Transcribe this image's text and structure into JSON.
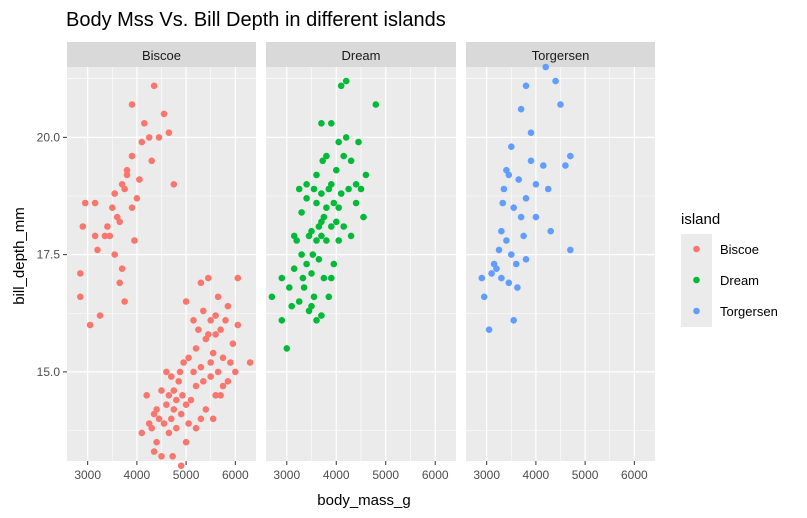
{
  "chart_data": {
    "type": "scatter",
    "title": "Body Mss Vs. Bill Depth in different islands",
    "xlabel": "body_mass_g",
    "ylabel": "bill_depth_mm",
    "xlim": [
      2580,
      6420
    ],
    "ylim": [
      13.1,
      21.5
    ],
    "x_ticks": [
      3000,
      4000,
      5000,
      6000
    ],
    "y_ticks": [
      15.0,
      17.5,
      20.0
    ],
    "x_tick_labels": [
      "3000",
      "4000",
      "5000",
      "6000"
    ],
    "y_tick_labels": [
      "15.0",
      "17.5",
      "20.0"
    ],
    "grid": true,
    "legend": {
      "title": "island",
      "position": "right",
      "items": [
        "Biscoe",
        "Dream",
        "Torgersen"
      ]
    },
    "facets": [
      "Biscoe",
      "Dream",
      "Torgersen"
    ],
    "colors": {
      "Biscoe": "#F8766D",
      "Dream": "#00BA38",
      "Torgersen": "#619CFF"
    },
    "series": [
      {
        "name": "Biscoe",
        "points": [
          [
            2850,
            16.6
          ],
          [
            2850,
            17.1
          ],
          [
            2900,
            18.1
          ],
          [
            2950,
            18.6
          ],
          [
            3050,
            16.0
          ],
          [
            3150,
            17.9
          ],
          [
            3150,
            18.6
          ],
          [
            3200,
            17.6
          ],
          [
            3250,
            16.2
          ],
          [
            3350,
            17.9
          ],
          [
            3400,
            18.1
          ],
          [
            3450,
            17.9
          ],
          [
            3500,
            18.5
          ],
          [
            3550,
            17.5
          ],
          [
            3550,
            18.8
          ],
          [
            3600,
            18.3
          ],
          [
            3650,
            18.2
          ],
          [
            3650,
            16.9
          ],
          [
            3700,
            17.2
          ],
          [
            3700,
            19.0
          ],
          [
            3750,
            16.5
          ],
          [
            3750,
            18.9
          ],
          [
            3800,
            19.2
          ],
          [
            3800,
            19.3
          ],
          [
            3900,
            19.6
          ],
          [
            3900,
            20.7
          ],
          [
            3900,
            18.5
          ],
          [
            3950,
            17.8
          ],
          [
            4000,
            18.7
          ],
          [
            4050,
            19.1
          ],
          [
            4100,
            19.9
          ],
          [
            4150,
            20.3
          ],
          [
            4250,
            20.0
          ],
          [
            4300,
            19.5
          ],
          [
            4350,
            21.1
          ],
          [
            4450,
            20.0
          ],
          [
            4550,
            20.5
          ],
          [
            4650,
            20.1
          ],
          [
            4750,
            19.0
          ],
          [
            4100,
            13.7
          ],
          [
            4200,
            14.5
          ],
          [
            4250,
            13.9
          ],
          [
            4300,
            13.8
          ],
          [
            4350,
            13.3
          ],
          [
            4350,
            14.1
          ],
          [
            4400,
            14.2
          ],
          [
            4400,
            13.5
          ],
          [
            4450,
            14.0
          ],
          [
            4500,
            13.2
          ],
          [
            4500,
            14.6
          ],
          [
            4550,
            13.9
          ],
          [
            4600,
            14.3
          ],
          [
            4600,
            15.0
          ],
          [
            4650,
            13.7
          ],
          [
            4650,
            14.5
          ],
          [
            4700,
            14.0
          ],
          [
            4700,
            14.9
          ],
          [
            4725,
            13.2
          ],
          [
            4750,
            14.6
          ],
          [
            4750,
            14.2
          ],
          [
            4800,
            14.4
          ],
          [
            4800,
            13.8
          ],
          [
            4850,
            14.8
          ],
          [
            4875,
            15.0
          ],
          [
            4900,
            13.0
          ],
          [
            4900,
            14.1
          ],
          [
            4925,
            14.5
          ],
          [
            4950,
            15.2
          ],
          [
            5000,
            13.5
          ],
          [
            5000,
            14.3
          ],
          [
            5050,
            13.9
          ],
          [
            5050,
            15.3
          ],
          [
            5100,
            14.4
          ],
          [
            5150,
            15.0
          ],
          [
            5200,
            13.8
          ],
          [
            5200,
            14.7
          ],
          [
            5200,
            15.5
          ],
          [
            5250,
            15.9
          ],
          [
            5300,
            14.0
          ],
          [
            5300,
            15.1
          ],
          [
            5350,
            14.8
          ],
          [
            5350,
            16.3
          ],
          [
            5400,
            14.2
          ],
          [
            5400,
            15.7
          ],
          [
            5450,
            15.8
          ],
          [
            5450,
            17.0
          ],
          [
            5500,
            14.9
          ],
          [
            5500,
            16.1
          ],
          [
            5550,
            15.4
          ],
          [
            5600,
            14.5
          ],
          [
            5600,
            16.2
          ],
          [
            5600,
            15.8
          ],
          [
            5650,
            15.0
          ],
          [
            5650,
            16.6
          ],
          [
            5700,
            14.5
          ],
          [
            5700,
            15.9
          ],
          [
            5750,
            15.3
          ],
          [
            5800,
            16.1
          ],
          [
            5850,
            14.8
          ],
          [
            5850,
            16.4
          ],
          [
            5900,
            15.2
          ],
          [
            5950,
            15.6
          ],
          [
            6000,
            15.0
          ],
          [
            6050,
            16.0
          ],
          [
            6050,
            17.0
          ],
          [
            6300,
            15.2
          ],
          [
            5000,
            16.5
          ],
          [
            5150,
            16.1
          ],
          [
            5300,
            16.9
          ],
          [
            5500,
            15.2
          ],
          [
            5550,
            14.0
          ],
          [
            5750,
            14.7
          ]
        ]
      },
      {
        "name": "Dream",
        "points": [
          [
            2700,
            16.6
          ],
          [
            2900,
            16.1
          ],
          [
            3000,
            15.5
          ],
          [
            2900,
            17.0
          ],
          [
            3050,
            16.8
          ],
          [
            3100,
            16.4
          ],
          [
            3150,
            17.2
          ],
          [
            3200,
            17.8
          ],
          [
            3250,
            16.5
          ],
          [
            3300,
            17.5
          ],
          [
            3300,
            18.4
          ],
          [
            3325,
            17.0
          ],
          [
            3350,
            16.8
          ],
          [
            3400,
            17.3
          ],
          [
            3400,
            18.7
          ],
          [
            3450,
            17.9
          ],
          [
            3450,
            16.3
          ],
          [
            3500,
            17.1
          ],
          [
            3500,
            18.0
          ],
          [
            3525,
            17.5
          ],
          [
            3550,
            18.9
          ],
          [
            3550,
            16.6
          ],
          [
            3600,
            17.8
          ],
          [
            3600,
            18.6
          ],
          [
            3600,
            19.2
          ],
          [
            3650,
            17.4
          ],
          [
            3650,
            18.1
          ],
          [
            3700,
            16.2
          ],
          [
            3700,
            17.9
          ],
          [
            3700,
            18.8
          ],
          [
            3700,
            20.3
          ],
          [
            3725,
            19.5
          ],
          [
            3750,
            17.0
          ],
          [
            3750,
            18.3
          ],
          [
            3800,
            17.8
          ],
          [
            3800,
            18.5
          ],
          [
            3800,
            19.6
          ],
          [
            3850,
            16.6
          ],
          [
            3850,
            18.9
          ],
          [
            3900,
            18.1
          ],
          [
            3900,
            19.0
          ],
          [
            3900,
            20.3
          ],
          [
            3950,
            17.3
          ],
          [
            3950,
            18.6
          ],
          [
            4000,
            18.2
          ],
          [
            4000,
            19.3
          ],
          [
            4050,
            17.8
          ],
          [
            4050,
            19.9
          ],
          [
            4100,
            18.8
          ],
          [
            4100,
            21.1
          ],
          [
            4150,
            18.1
          ],
          [
            4150,
            19.6
          ],
          [
            4200,
            20.0
          ],
          [
            4200,
            21.2
          ],
          [
            4250,
            18.9
          ],
          [
            4300,
            19.5
          ],
          [
            4300,
            17.9
          ],
          [
            4400,
            18.6
          ],
          [
            4400,
            19.0
          ],
          [
            4450,
            19.9
          ],
          [
            4500,
            18.9
          ],
          [
            4550,
            18.3
          ],
          [
            4600,
            19.2
          ],
          [
            4800,
            20.7
          ],
          [
            3400,
            19.0
          ],
          [
            3500,
            16.4
          ],
          [
            3250,
            18.9
          ],
          [
            3150,
            17.9
          ],
          [
            3600,
            16.1
          ],
          [
            3700,
            18.2
          ],
          [
            3900,
            17.0
          ],
          [
            4050,
            18.5
          ]
        ]
      },
      {
        "name": "Torgersen",
        "points": [
          [
            2900,
            17.0
          ],
          [
            2950,
            16.6
          ],
          [
            3050,
            15.9
          ],
          [
            3100,
            17.1
          ],
          [
            3150,
            17.3
          ],
          [
            3200,
            17.2
          ],
          [
            3250,
            17.6
          ],
          [
            3300,
            18.0
          ],
          [
            3300,
            17.0
          ],
          [
            3325,
            18.6
          ],
          [
            3350,
            18.9
          ],
          [
            3400,
            17.8
          ],
          [
            3400,
            19.3
          ],
          [
            3450,
            19.2
          ],
          [
            3450,
            16.9
          ],
          [
            3500,
            19.8
          ],
          [
            3500,
            17.5
          ],
          [
            3550,
            18.5
          ],
          [
            3550,
            16.1
          ],
          [
            3600,
            17.3
          ],
          [
            3625,
            16.8
          ],
          [
            3650,
            19.1
          ],
          [
            3700,
            20.6
          ],
          [
            3700,
            18.3
          ],
          [
            3750,
            17.9
          ],
          [
            3800,
            18.7
          ],
          [
            3800,
            17.4
          ],
          [
            3800,
            21.1
          ],
          [
            3900,
            19.5
          ],
          [
            3900,
            20.1
          ],
          [
            4000,
            19.0
          ],
          [
            4000,
            18.3
          ],
          [
            4150,
            19.4
          ],
          [
            4200,
            21.5
          ],
          [
            4250,
            18.9
          ],
          [
            4300,
            18.0
          ],
          [
            4400,
            21.2
          ],
          [
            4500,
            20.7
          ],
          [
            4600,
            19.4
          ],
          [
            4700,
            17.6
          ],
          [
            4700,
            19.6
          ]
        ]
      }
    ]
  }
}
